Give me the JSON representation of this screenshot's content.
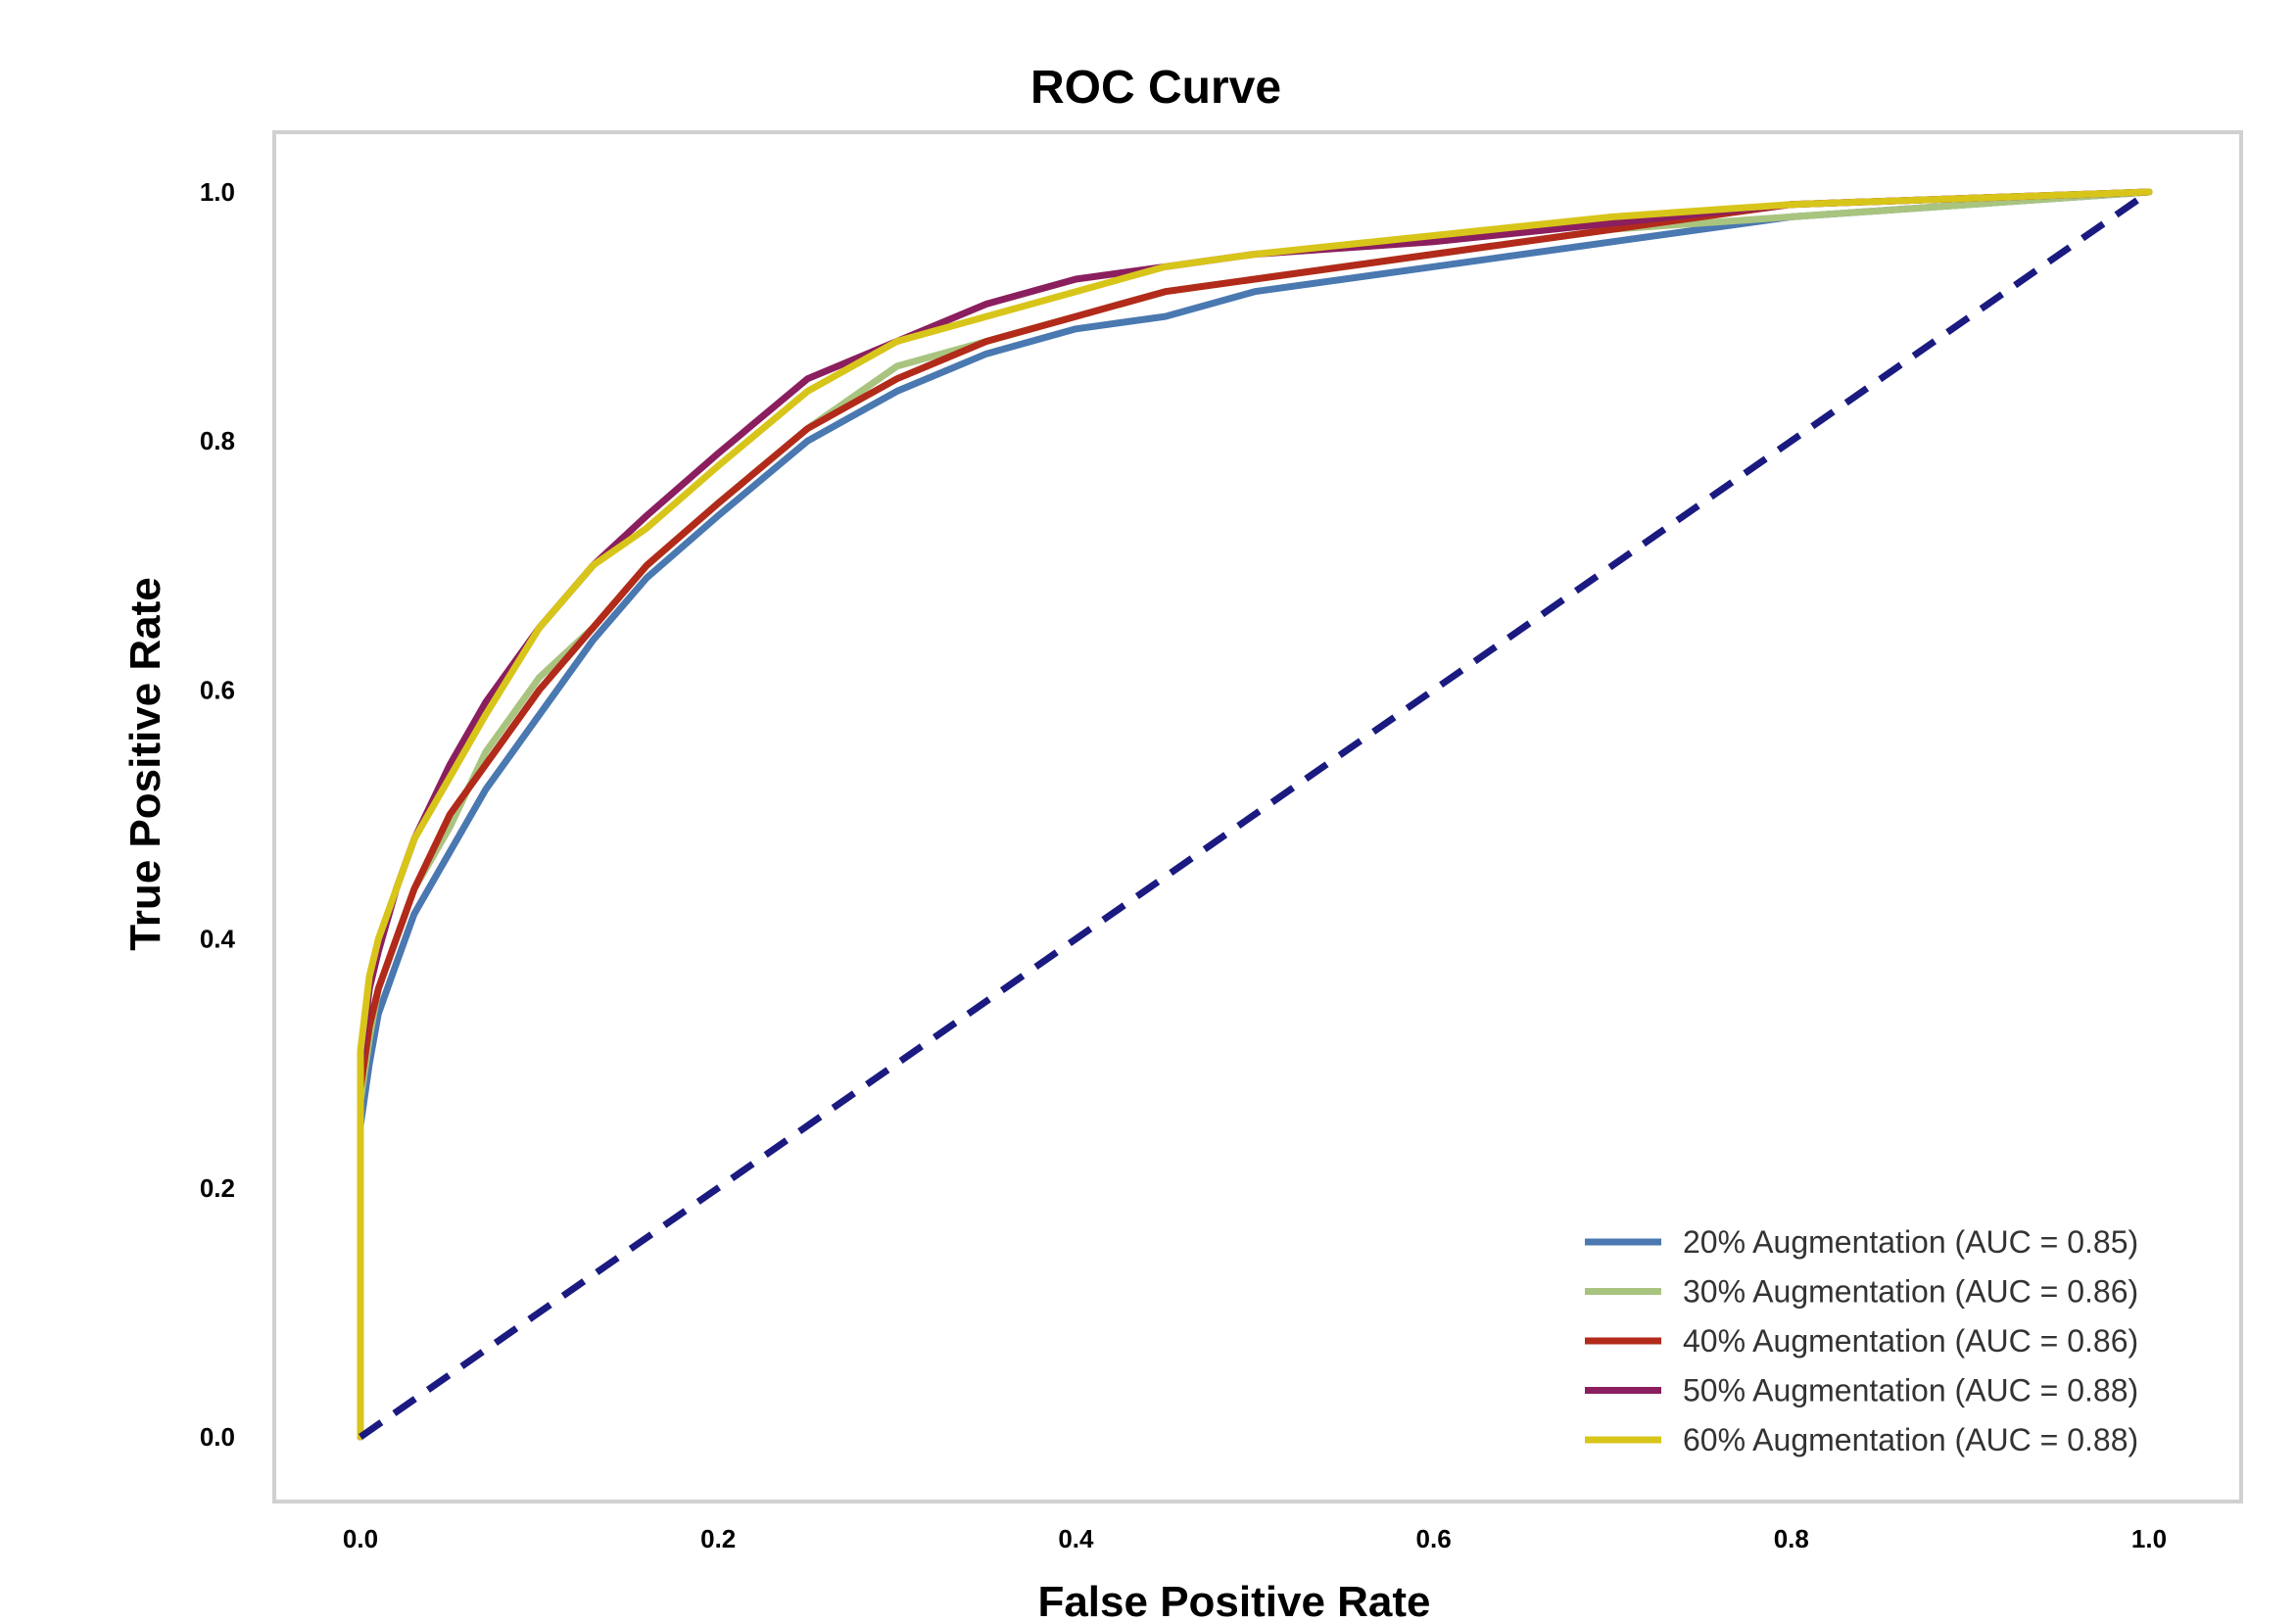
{
  "chart_data": {
    "type": "line",
    "title": "ROC Curve",
    "xlabel": "False Positive Rate",
    "ylabel": "True Positive Rate",
    "xlim": [
      0.0,
      1.0
    ],
    "ylim": [
      0.0,
      1.0
    ],
    "x_ticks": [
      "0.0",
      "0.2",
      "0.4",
      "0.6",
      "0.8",
      "1.0"
    ],
    "y_ticks": [
      "0.0",
      "0.2",
      "0.4",
      "0.6",
      "0.8",
      "1.0"
    ],
    "grid": false,
    "legend_position": "lower-right",
    "series": [
      {
        "name": "20% Augmentation (AUC = 0.85)",
        "color": "#4a78b0",
        "x": [
          0.0,
          0.0,
          0.005,
          0.01,
          0.02,
          0.03,
          0.05,
          0.07,
          0.1,
          0.13,
          0.16,
          0.2,
          0.25,
          0.3,
          0.35,
          0.4,
          0.45,
          0.5,
          0.6,
          0.7,
          0.8,
          0.9,
          1.0
        ],
        "y": [
          0.0,
          0.25,
          0.3,
          0.34,
          0.38,
          0.42,
          0.47,
          0.52,
          0.58,
          0.64,
          0.69,
          0.74,
          0.8,
          0.84,
          0.87,
          0.89,
          0.9,
          0.92,
          0.94,
          0.96,
          0.98,
          0.99,
          1.0
        ]
      },
      {
        "name": "30% Augmentation (AUC = 0.86)",
        "color": "#a9c47f",
        "x": [
          0.0,
          0.0,
          0.005,
          0.01,
          0.02,
          0.03,
          0.05,
          0.07,
          0.1,
          0.13,
          0.16,
          0.2,
          0.25,
          0.3,
          0.35,
          0.4,
          0.45,
          0.5,
          0.6,
          0.7,
          0.8,
          0.9,
          1.0
        ],
        "y": [
          0.0,
          0.27,
          0.32,
          0.36,
          0.4,
          0.44,
          0.49,
          0.55,
          0.61,
          0.65,
          0.7,
          0.75,
          0.81,
          0.86,
          0.88,
          0.9,
          0.92,
          0.93,
          0.95,
          0.97,
          0.98,
          0.99,
          1.0
        ]
      },
      {
        "name": "40% Augmentation (AUC = 0.86)",
        "color": "#b22a1a",
        "x": [
          0.0,
          0.0,
          0.005,
          0.01,
          0.02,
          0.03,
          0.05,
          0.07,
          0.1,
          0.13,
          0.16,
          0.2,
          0.25,
          0.3,
          0.35,
          0.4,
          0.45,
          0.5,
          0.6,
          0.7,
          0.8,
          0.9,
          1.0
        ],
        "y": [
          0.0,
          0.28,
          0.33,
          0.36,
          0.4,
          0.44,
          0.5,
          0.54,
          0.6,
          0.65,
          0.7,
          0.75,
          0.81,
          0.85,
          0.88,
          0.9,
          0.92,
          0.93,
          0.95,
          0.97,
          0.99,
          0.995,
          1.0
        ]
      },
      {
        "name": "50% Augmentation (AUC = 0.88)",
        "color": "#8b1e5e",
        "x": [
          0.0,
          0.0,
          0.005,
          0.01,
          0.02,
          0.03,
          0.05,
          0.07,
          0.1,
          0.13,
          0.16,
          0.2,
          0.25,
          0.3,
          0.35,
          0.4,
          0.45,
          0.5,
          0.6,
          0.7,
          0.8,
          0.9,
          1.0
        ],
        "y": [
          0.0,
          0.3,
          0.36,
          0.39,
          0.44,
          0.48,
          0.54,
          0.59,
          0.65,
          0.7,
          0.74,
          0.79,
          0.85,
          0.88,
          0.91,
          0.93,
          0.94,
          0.95,
          0.96,
          0.975,
          0.99,
          0.995,
          1.0
        ]
      },
      {
        "name": "60% Augmentation (AUC = 0.88)",
        "color": "#d8c51a",
        "x": [
          0.0,
          0.0,
          0.005,
          0.01,
          0.02,
          0.03,
          0.05,
          0.07,
          0.1,
          0.13,
          0.16,
          0.2,
          0.25,
          0.3,
          0.35,
          0.4,
          0.45,
          0.5,
          0.6,
          0.7,
          0.8,
          0.9,
          1.0
        ],
        "y": [
          0.0,
          0.31,
          0.37,
          0.4,
          0.44,
          0.48,
          0.53,
          0.58,
          0.65,
          0.7,
          0.73,
          0.78,
          0.84,
          0.88,
          0.9,
          0.92,
          0.94,
          0.95,
          0.965,
          0.98,
          0.99,
          0.995,
          1.0
        ]
      }
    ],
    "reference_line": {
      "x": [
        0.0,
        1.0
      ],
      "y": [
        0.0,
        1.0
      ],
      "color": "#1a1a80",
      "style": "dashed"
    }
  }
}
